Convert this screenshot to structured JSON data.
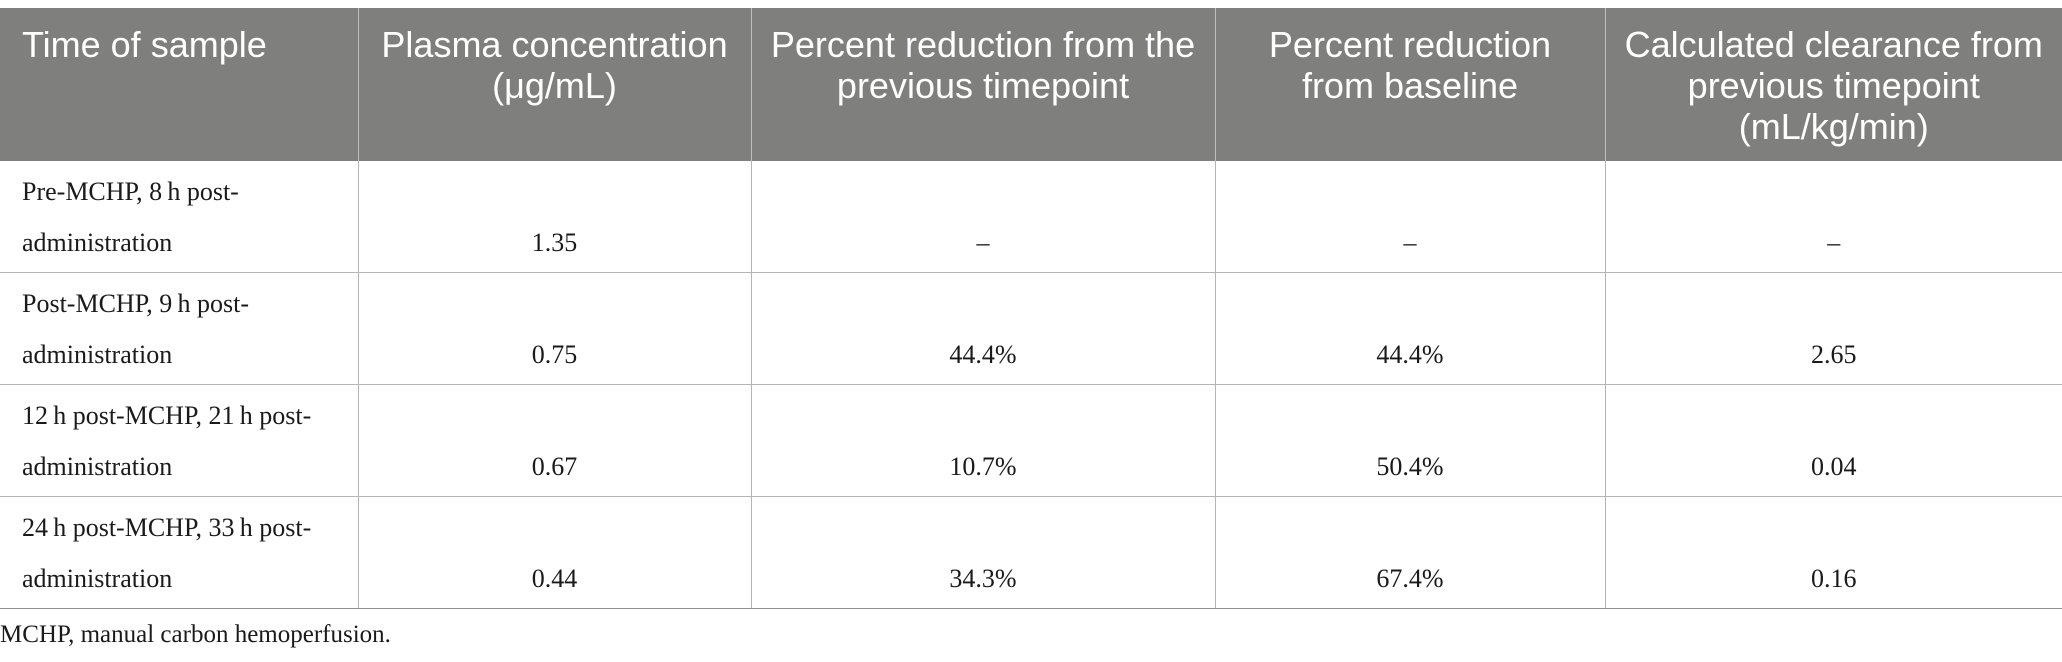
{
  "table": {
    "headers": [
      "Time of sample",
      "Plasma concentration (μg/mL)",
      "Percent reduction from the previous timepoint",
      "Percent reduction from baseline",
      "Calculated clearance from previous timepoint (mL/kg/min)"
    ],
    "rows": [
      [
        "Pre-MCHP, 8 h post-administration",
        "1.35",
        "–",
        "–",
        "–"
      ],
      [
        "Post-MCHP, 9 h post-administration",
        "0.75",
        "44.4%",
        "44.4%",
        "2.65"
      ],
      [
        "12 h post-MCHP, 21 h post-administration",
        "0.67",
        "10.7%",
        "50.4%",
        "0.04"
      ],
      [
        "24 h post-MCHP, 33 h post-administration",
        "0.44",
        "34.3%",
        "67.4%",
        "0.16"
      ]
    ]
  },
  "footnote": "MCHP, manual carbon hemoperfusion."
}
